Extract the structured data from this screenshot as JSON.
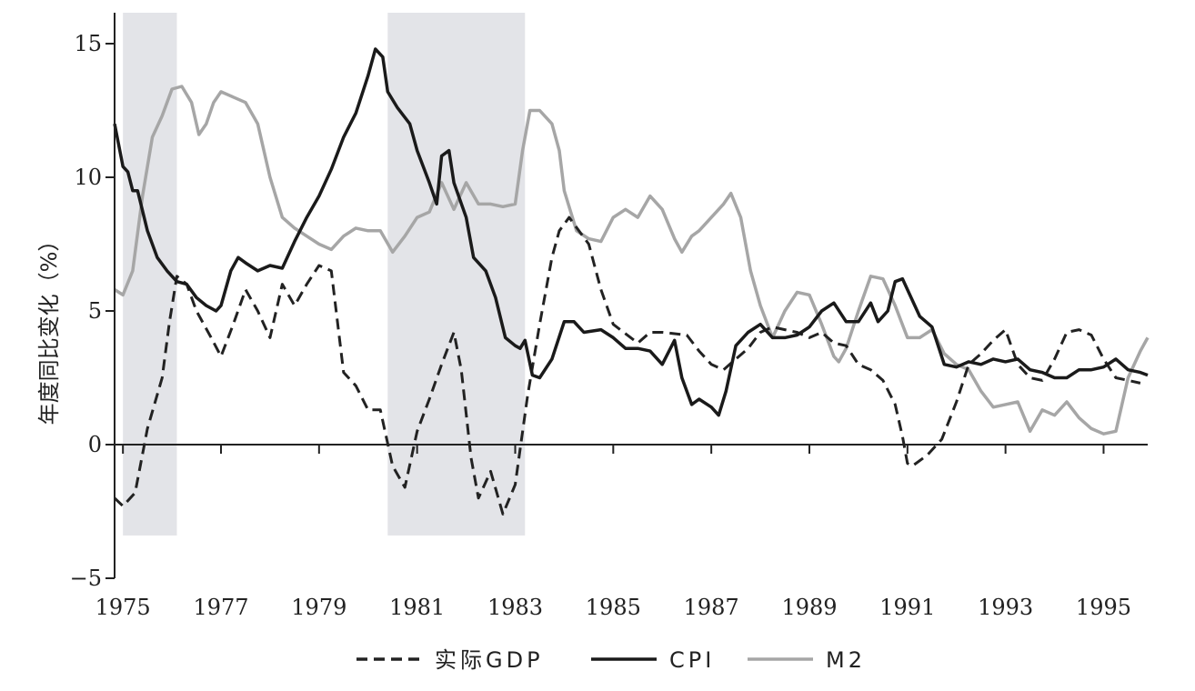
{
  "chart_data": {
    "type": "line",
    "ylabel": "年度同比变化（%）",
    "xlim": [
      1974.83,
      1995.9
    ],
    "ylim": [
      -5,
      16
    ],
    "x_ticks": [
      {
        "value": 1975,
        "label": "1975"
      },
      {
        "value": 1977,
        "label": "1977"
      },
      {
        "value": 1979,
        "label": "1979"
      },
      {
        "value": 1981,
        "label": "1981"
      },
      {
        "value": 1983,
        "label": "1983"
      },
      {
        "value": 1985,
        "label": "1985"
      },
      {
        "value": 1987,
        "label": "1987"
      },
      {
        "value": 1989,
        "label": "1989"
      },
      {
        "value": 1991,
        "label": "1991"
      },
      {
        "value": 1993,
        "label": "1993"
      },
      {
        "value": 1995,
        "label": "1995"
      }
    ],
    "y_ticks": [
      {
        "value": -5,
        "label": "−5"
      },
      {
        "value": 0,
        "label": "0"
      },
      {
        "value": 5,
        "label": "5"
      },
      {
        "value": 10,
        "label": "10"
      },
      {
        "value": 15,
        "label": "15"
      }
    ],
    "grid": false,
    "legend_position": "bottom",
    "shaded_periods": [
      {
        "start": 1975.0,
        "end": 1976.1
      },
      {
        "start": 1980.4,
        "end": 1983.2
      }
    ],
    "series": [
      {
        "name": "实际GDP",
        "color": "#222222",
        "style": "dashed",
        "points": [
          [
            1974.83,
            -2.0
          ],
          [
            1975.0,
            -2.3
          ],
          [
            1975.25,
            -1.8
          ],
          [
            1975.5,
            0.6
          ],
          [
            1975.8,
            2.5
          ],
          [
            1975.95,
            4.6
          ],
          [
            1976.1,
            6.3
          ],
          [
            1976.3,
            6.0
          ],
          [
            1976.5,
            5.0
          ],
          [
            1976.8,
            4.0
          ],
          [
            1977.0,
            3.3
          ],
          [
            1977.25,
            4.5
          ],
          [
            1977.5,
            5.8
          ],
          [
            1977.75,
            5.0
          ],
          [
            1978.0,
            4.0
          ],
          [
            1978.25,
            6.0
          ],
          [
            1978.5,
            5.2
          ],
          [
            1978.75,
            6.0
          ],
          [
            1979.0,
            6.7
          ],
          [
            1979.25,
            6.5
          ],
          [
            1979.5,
            2.7
          ],
          [
            1979.75,
            2.2
          ],
          [
            1980.0,
            1.3
          ],
          [
            1980.25,
            1.3
          ],
          [
            1980.5,
            -0.8
          ],
          [
            1980.75,
            -1.6
          ],
          [
            1981.0,
            0.5
          ],
          [
            1981.25,
            1.7
          ],
          [
            1981.5,
            3.0
          ],
          [
            1981.75,
            4.2
          ],
          [
            1981.9,
            2.8
          ],
          [
            1982.1,
            -0.5
          ],
          [
            1982.25,
            -2.0
          ],
          [
            1982.5,
            -1.0
          ],
          [
            1982.75,
            -2.6
          ],
          [
            1983.0,
            -1.5
          ],
          [
            1983.25,
            1.8
          ],
          [
            1983.5,
            4.5
          ],
          [
            1983.75,
            7.0
          ],
          [
            1983.9,
            8.0
          ],
          [
            1984.1,
            8.5
          ],
          [
            1984.5,
            7.5
          ],
          [
            1984.75,
            5.8
          ],
          [
            1985.0,
            4.5
          ],
          [
            1985.5,
            3.8
          ],
          [
            1985.75,
            4.2
          ],
          [
            1986.0,
            4.2
          ],
          [
            1986.5,
            4.1
          ],
          [
            1986.75,
            3.5
          ],
          [
            1987.0,
            3.0
          ],
          [
            1987.25,
            2.8
          ],
          [
            1987.5,
            3.2
          ],
          [
            1987.75,
            3.6
          ],
          [
            1988.0,
            4.2
          ],
          [
            1988.25,
            4.4
          ],
          [
            1988.5,
            4.3
          ],
          [
            1988.75,
            4.2
          ],
          [
            1989.0,
            4.0
          ],
          [
            1989.25,
            4.2
          ],
          [
            1989.5,
            3.8
          ],
          [
            1989.75,
            3.7
          ],
          [
            1990.0,
            3.0
          ],
          [
            1990.25,
            2.8
          ],
          [
            1990.5,
            2.4
          ],
          [
            1990.75,
            1.5
          ],
          [
            1990.9,
            0.3
          ],
          [
            1991.0,
            -0.7
          ],
          [
            1991.1,
            -0.8
          ],
          [
            1991.4,
            -0.4
          ],
          [
            1991.7,
            0.2
          ],
          [
            1992.0,
            1.6
          ],
          [
            1992.25,
            3.0
          ],
          [
            1992.5,
            3.4
          ],
          [
            1992.75,
            3.9
          ],
          [
            1993.0,
            4.3
          ],
          [
            1993.25,
            3.0
          ],
          [
            1993.5,
            2.5
          ],
          [
            1993.75,
            2.4
          ],
          [
            1994.0,
            3.2
          ],
          [
            1994.25,
            4.2
          ],
          [
            1994.5,
            4.3
          ],
          [
            1994.75,
            4.1
          ],
          [
            1995.0,
            3.2
          ],
          [
            1995.25,
            2.5
          ],
          [
            1995.5,
            2.4
          ],
          [
            1995.75,
            2.3
          ]
        ]
      },
      {
        "name": "CPI",
        "color": "#1a1a1a",
        "style": "solid",
        "points": [
          [
            1974.83,
            12.0
          ],
          [
            1975.0,
            10.4
          ],
          [
            1975.1,
            10.2
          ],
          [
            1975.2,
            9.5
          ],
          [
            1975.3,
            9.5
          ],
          [
            1975.5,
            8.0
          ],
          [
            1975.7,
            7.0
          ],
          [
            1975.9,
            6.5
          ],
          [
            1976.1,
            6.1
          ],
          [
            1976.3,
            6.0
          ],
          [
            1976.5,
            5.5
          ],
          [
            1976.7,
            5.2
          ],
          [
            1976.9,
            5.0
          ],
          [
            1977.0,
            5.2
          ],
          [
            1977.2,
            6.5
          ],
          [
            1977.35,
            7.0
          ],
          [
            1977.5,
            6.8
          ],
          [
            1977.75,
            6.5
          ],
          [
            1978.0,
            6.7
          ],
          [
            1978.25,
            6.6
          ],
          [
            1978.5,
            7.6
          ],
          [
            1978.75,
            8.5
          ],
          [
            1979.0,
            9.3
          ],
          [
            1979.25,
            10.3
          ],
          [
            1979.5,
            11.5
          ],
          [
            1979.75,
            12.4
          ],
          [
            1980.0,
            13.8
          ],
          [
            1980.15,
            14.8
          ],
          [
            1980.3,
            14.5
          ],
          [
            1980.4,
            13.2
          ],
          [
            1980.6,
            12.6
          ],
          [
            1980.85,
            12.0
          ],
          [
            1981.0,
            11.0
          ],
          [
            1981.25,
            9.8
          ],
          [
            1981.4,
            9.0
          ],
          [
            1981.5,
            10.8
          ],
          [
            1981.65,
            11.0
          ],
          [
            1981.75,
            9.8
          ],
          [
            1982.0,
            8.5
          ],
          [
            1982.15,
            7.0
          ],
          [
            1982.4,
            6.5
          ],
          [
            1982.6,
            5.5
          ],
          [
            1982.8,
            4.0
          ],
          [
            1983.0,
            3.7
          ],
          [
            1983.1,
            3.6
          ],
          [
            1983.2,
            3.9
          ],
          [
            1983.35,
            2.6
          ],
          [
            1983.5,
            2.5
          ],
          [
            1983.75,
            3.2
          ],
          [
            1984.0,
            4.6
          ],
          [
            1984.2,
            4.6
          ],
          [
            1984.4,
            4.2
          ],
          [
            1984.75,
            4.3
          ],
          [
            1985.0,
            4.0
          ],
          [
            1985.25,
            3.6
          ],
          [
            1985.5,
            3.6
          ],
          [
            1985.75,
            3.5
          ],
          [
            1986.0,
            3.0
          ],
          [
            1986.25,
            3.9
          ],
          [
            1986.4,
            2.5
          ],
          [
            1986.6,
            1.5
          ],
          [
            1986.75,
            1.7
          ],
          [
            1987.0,
            1.4
          ],
          [
            1987.15,
            1.1
          ],
          [
            1987.3,
            2.0
          ],
          [
            1987.5,
            3.7
          ],
          [
            1987.75,
            4.2
          ],
          [
            1988.0,
            4.5
          ],
          [
            1988.25,
            4.0
          ],
          [
            1988.5,
            4.0
          ],
          [
            1988.75,
            4.1
          ],
          [
            1989.0,
            4.4
          ],
          [
            1989.25,
            5.0
          ],
          [
            1989.5,
            5.3
          ],
          [
            1989.75,
            4.6
          ],
          [
            1990.0,
            4.6
          ],
          [
            1990.25,
            5.3
          ],
          [
            1990.4,
            4.6
          ],
          [
            1990.6,
            5.0
          ],
          [
            1990.75,
            6.1
          ],
          [
            1990.9,
            6.2
          ],
          [
            1991.0,
            5.8
          ],
          [
            1991.25,
            4.8
          ],
          [
            1991.5,
            4.4
          ],
          [
            1991.75,
            3.0
          ],
          [
            1992.0,
            2.9
          ],
          [
            1992.25,
            3.1
          ],
          [
            1992.5,
            3.0
          ],
          [
            1992.75,
            3.2
          ],
          [
            1993.0,
            3.1
          ],
          [
            1993.25,
            3.2
          ],
          [
            1993.5,
            2.8
          ],
          [
            1993.75,
            2.7
          ],
          [
            1994.0,
            2.5
          ],
          [
            1994.25,
            2.5
          ],
          [
            1994.5,
            2.8
          ],
          [
            1994.75,
            2.8
          ],
          [
            1995.0,
            2.9
          ],
          [
            1995.25,
            3.2
          ],
          [
            1995.5,
            2.8
          ],
          [
            1995.75,
            2.7
          ],
          [
            1995.9,
            2.6
          ]
        ]
      },
      {
        "name": "M2",
        "color": "#a6a6a6",
        "style": "solid",
        "points": [
          [
            1974.83,
            5.8
          ],
          [
            1975.0,
            5.6
          ],
          [
            1975.2,
            6.5
          ],
          [
            1975.4,
            9.3
          ],
          [
            1975.6,
            11.5
          ],
          [
            1975.8,
            12.3
          ],
          [
            1976.0,
            13.3
          ],
          [
            1976.2,
            13.4
          ],
          [
            1976.4,
            12.8
          ],
          [
            1976.55,
            11.6
          ],
          [
            1976.7,
            12.0
          ],
          [
            1976.85,
            12.8
          ],
          [
            1977.0,
            13.2
          ],
          [
            1977.25,
            13.0
          ],
          [
            1977.5,
            12.8
          ],
          [
            1977.75,
            12.0
          ],
          [
            1978.0,
            10.0
          ],
          [
            1978.25,
            8.5
          ],
          [
            1978.5,
            8.1
          ],
          [
            1978.75,
            7.8
          ],
          [
            1979.0,
            7.5
          ],
          [
            1979.25,
            7.3
          ],
          [
            1979.5,
            7.8
          ],
          [
            1979.75,
            8.1
          ],
          [
            1980.0,
            8.0
          ],
          [
            1980.25,
            8.0
          ],
          [
            1980.5,
            7.2
          ],
          [
            1980.75,
            7.8
          ],
          [
            1981.0,
            8.5
          ],
          [
            1981.25,
            8.7
          ],
          [
            1981.5,
            9.8
          ],
          [
            1981.75,
            8.8
          ],
          [
            1982.0,
            9.8
          ],
          [
            1982.25,
            9.0
          ],
          [
            1982.5,
            9.0
          ],
          [
            1982.75,
            8.9
          ],
          [
            1983.0,
            9.0
          ],
          [
            1983.15,
            11.0
          ],
          [
            1983.3,
            12.5
          ],
          [
            1983.5,
            12.5
          ],
          [
            1983.75,
            12.0
          ],
          [
            1983.9,
            11.0
          ],
          [
            1984.0,
            9.5
          ],
          [
            1984.25,
            8.0
          ],
          [
            1984.5,
            7.7
          ],
          [
            1984.75,
            7.6
          ],
          [
            1985.0,
            8.5
          ],
          [
            1985.25,
            8.8
          ],
          [
            1985.5,
            8.5
          ],
          [
            1985.75,
            9.3
          ],
          [
            1986.0,
            8.8
          ],
          [
            1986.25,
            7.7
          ],
          [
            1986.4,
            7.2
          ],
          [
            1986.6,
            7.8
          ],
          [
            1986.75,
            8.0
          ],
          [
            1987.0,
            8.5
          ],
          [
            1987.25,
            9.0
          ],
          [
            1987.4,
            9.4
          ],
          [
            1987.6,
            8.5
          ],
          [
            1987.8,
            6.5
          ],
          [
            1988.0,
            5.2
          ],
          [
            1988.25,
            4.0
          ],
          [
            1988.5,
            5.0
          ],
          [
            1988.75,
            5.7
          ],
          [
            1989.0,
            5.6
          ],
          [
            1989.25,
            4.5
          ],
          [
            1989.5,
            3.3
          ],
          [
            1989.6,
            3.1
          ],
          [
            1989.75,
            3.6
          ],
          [
            1990.0,
            5.0
          ],
          [
            1990.25,
            6.3
          ],
          [
            1990.5,
            6.2
          ],
          [
            1990.75,
            5.2
          ],
          [
            1991.0,
            4.0
          ],
          [
            1991.25,
            4.0
          ],
          [
            1991.5,
            4.3
          ],
          [
            1991.75,
            3.4
          ],
          [
            1992.0,
            3.0
          ],
          [
            1992.25,
            2.8
          ],
          [
            1992.5,
            2.0
          ],
          [
            1992.75,
            1.4
          ],
          [
            1993.0,
            1.5
          ],
          [
            1993.25,
            1.6
          ],
          [
            1993.5,
            0.5
          ],
          [
            1993.75,
            1.3
          ],
          [
            1994.0,
            1.1
          ],
          [
            1994.25,
            1.6
          ],
          [
            1994.5,
            1.0
          ],
          [
            1994.75,
            0.6
          ],
          [
            1995.0,
            0.4
          ],
          [
            1995.25,
            0.5
          ],
          [
            1995.5,
            2.5
          ],
          [
            1995.75,
            3.5
          ],
          [
            1995.9,
            4.0
          ]
        ]
      }
    ]
  }
}
